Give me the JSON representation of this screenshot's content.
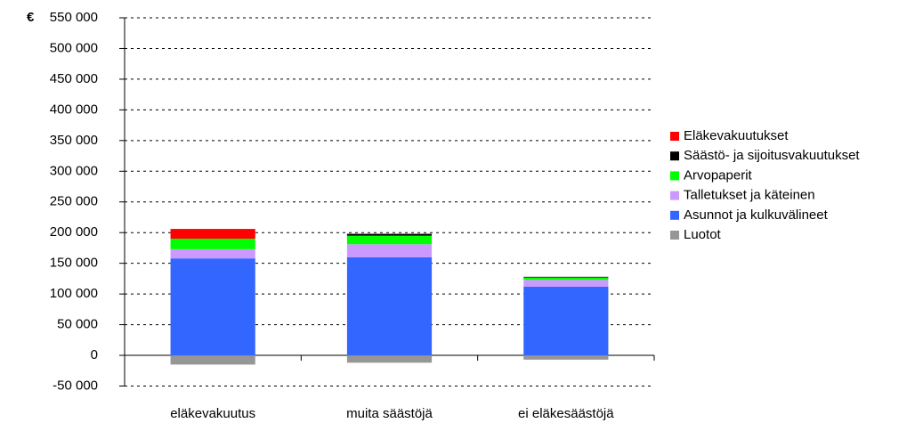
{
  "chart_data": {
    "type": "stacked_bar",
    "y_label": "€",
    "categories": [
      "eläkevakuutus",
      "muita säästöjä",
      "ei eläkesäästöjä"
    ],
    "series": [
      {
        "name": "Luotot",
        "color": "#969696",
        "values": [
          -15000,
          -12000,
          -7000
        ]
      },
      {
        "name": "Asunnot ja kulkuvälineet",
        "color": "#3366ff",
        "values": [
          158000,
          160000,
          112000
        ]
      },
      {
        "name": "Talletukset ja käteinen",
        "color": "#cc99ff",
        "values": [
          15000,
          21000,
          11000
        ]
      },
      {
        "name": "Arvopaperit",
        "color": "#00ff00",
        "values": [
          17000,
          14000,
          4000
        ]
      },
      {
        "name": "Säästö- ja sijoitusvakuutukset",
        "color": "#000000",
        "values": [
          0,
          3000,
          1000
        ]
      },
      {
        "name": "Eläkevakuutukset",
        "color": "#ff0000",
        "values": [
          16000,
          0,
          0
        ]
      }
    ],
    "ylim": [
      -50000,
      550000
    ],
    "yticks": [
      {
        "value": -50000,
        "label": "-50 000"
      },
      0,
      {
        "value": 50000,
        "label": "50 000"
      },
      {
        "value": 100000,
        "label": "100 000"
      },
      {
        "value": 150000,
        "label": "150 000"
      },
      {
        "value": 200000,
        "label": "200 000"
      },
      {
        "value": 250000,
        "label": "250 000"
      },
      {
        "value": 300000,
        "label": "300 000"
      },
      {
        "value": 350000,
        "label": "350 000"
      },
      {
        "value": 400000,
        "label": "400 000"
      },
      {
        "value": 450000,
        "label": "450 000"
      },
      {
        "value": 500000,
        "label": "500 000"
      },
      {
        "value": 550000,
        "label": "550 000"
      }
    ],
    "grid": true,
    "legend": "right"
  }
}
